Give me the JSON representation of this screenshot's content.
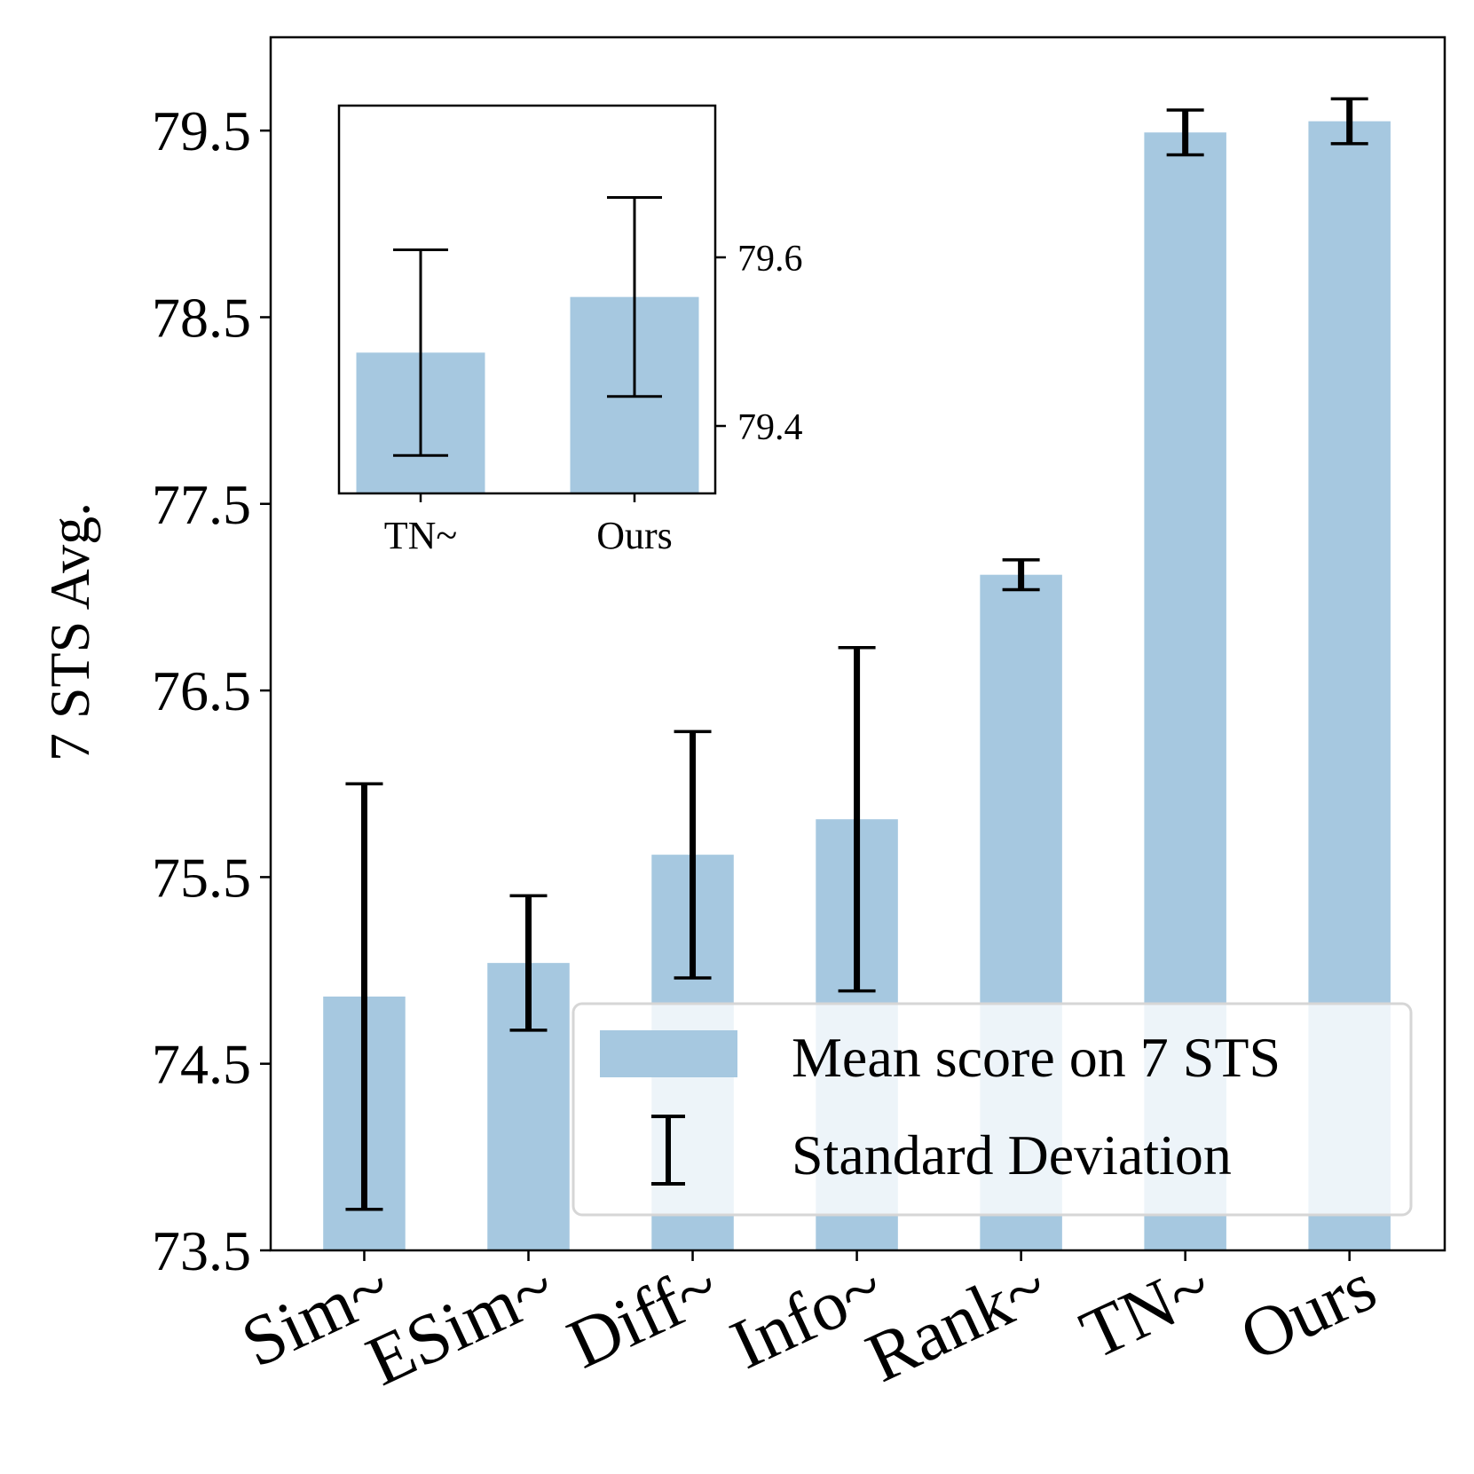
{
  "chart_data": [
    {
      "type": "bar",
      "ylabel": "7 STS Avg.",
      "xlabel": "",
      "categories": [
        "Sim~",
        "ESim~",
        "Diff~",
        "Info~",
        "Rank~",
        "TN~",
        "Ours"
      ],
      "series": [
        {
          "name": "Mean score on 7 STS",
          "values": [
            74.86,
            75.04,
            75.62,
            75.81,
            77.12,
            79.49,
            79.55
          ]
        }
      ],
      "error": [
        1.14,
        0.36,
        0.66,
        0.92,
        0.08,
        0.12,
        0.12
      ],
      "error_label": "Standard Deviation",
      "ylim": [
        73.5,
        80.0
      ],
      "yticks": [
        "73.5",
        "74.5",
        "75.5",
        "76.5",
        "77.5",
        "78.5",
        "79.5"
      ],
      "legend": {
        "position": "lower-right",
        "entries": [
          "Mean score on 7 STS",
          "Standard Deviation"
        ]
      },
      "bar_color": "#a6c8e0",
      "grid": false
    },
    {
      "type": "bar",
      "inset": true,
      "categories": [
        "TN~",
        "Ours"
      ],
      "values": [
        79.487,
        79.553
      ],
      "error": [
        0.122,
        0.118
      ],
      "ylim": [
        79.32,
        79.78
      ],
      "yticks": [
        "79.4",
        "79.6"
      ],
      "yaxis_side": "right",
      "bar_color": "#a6c8e0",
      "grid": false
    }
  ]
}
